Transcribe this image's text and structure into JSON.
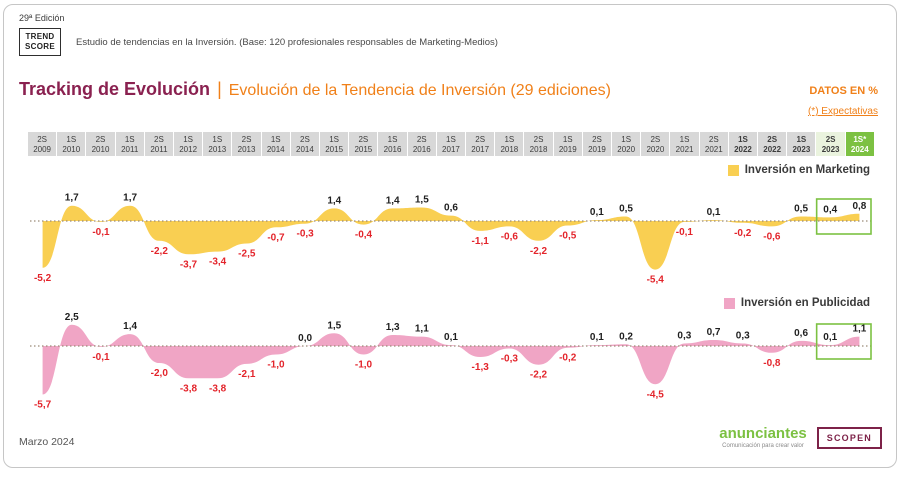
{
  "meta": {
    "edition": "29ª Edición",
    "logo_line1": "TREND",
    "logo_line2": "SCORE",
    "description": "Estudio de tendencias en la Inversión. (Base: 120 profesionales responsables de Marketing-Medios)",
    "datos": "DATOS EN %",
    "expectativas": "(*) Expectativas",
    "footer_date": "Marzo 2024"
  },
  "title": {
    "main": "Tracking de Evolución",
    "separator": "|",
    "sub": "Evolución de la Tendencia de Inversión (29 ediciones)"
  },
  "logos": {
    "anunciantes": "anunciantes",
    "anunciantes_tagline": "Comunicación para crear valor",
    "scopen": "SCOPEN"
  },
  "colors": {
    "title_purple": "#8a2150",
    "accent_orange": "#f08019",
    "marketing_fill": "#f9cf52",
    "publicidad_fill": "#f0a5c5",
    "negative_label": "#e3242b",
    "positive_label": "#1f1f1f",
    "header_bg": "#d8d8d8",
    "header_green_light": "#eaf3de",
    "green": "#7cc142",
    "baseline": "#9b8b78",
    "scopen_purple": "#7d2248"
  },
  "columns": [
    {
      "half": "2S",
      "year": "2009",
      "variant": ""
    },
    {
      "half": "1S",
      "year": "2010",
      "variant": ""
    },
    {
      "half": "2S",
      "year": "2010",
      "variant": ""
    },
    {
      "half": "1S",
      "year": "2011",
      "variant": ""
    },
    {
      "half": "2S",
      "year": "2011",
      "variant": ""
    },
    {
      "half": "1S",
      "year": "2012",
      "variant": ""
    },
    {
      "half": "1S",
      "year": "2013",
      "variant": ""
    },
    {
      "half": "2S",
      "year": "2013",
      "variant": ""
    },
    {
      "half": "1S",
      "year": "2014",
      "variant": ""
    },
    {
      "half": "2S",
      "year": "2014",
      "variant": ""
    },
    {
      "half": "1S",
      "year": "2015",
      "variant": ""
    },
    {
      "half": "2S",
      "year": "2015",
      "variant": ""
    },
    {
      "half": "1S",
      "year": "2016",
      "variant": ""
    },
    {
      "half": "2S",
      "year": "2016",
      "variant": ""
    },
    {
      "half": "1S",
      "year": "2017",
      "variant": ""
    },
    {
      "half": "2S",
      "year": "2017",
      "variant": ""
    },
    {
      "half": "1S",
      "year": "2018",
      "variant": ""
    },
    {
      "half": "2S",
      "year": "2018",
      "variant": ""
    },
    {
      "half": "1S",
      "year": "2019",
      "variant": ""
    },
    {
      "half": "2S",
      "year": "2019",
      "variant": ""
    },
    {
      "half": "1S",
      "year": "2020",
      "variant": ""
    },
    {
      "half": "2S",
      "year": "2020",
      "variant": ""
    },
    {
      "half": "1S",
      "year": "2021",
      "variant": ""
    },
    {
      "half": "2S",
      "year": "2021",
      "variant": ""
    },
    {
      "half": "1S",
      "year": "2022",
      "variant": "bold"
    },
    {
      "half": "2S",
      "year": "2022",
      "variant": "bold"
    },
    {
      "half": "1S",
      "year": "2023",
      "variant": "bold"
    },
    {
      "half": "2S",
      "year": "2023",
      "variant": "lightgreen"
    },
    {
      "half": "1S*",
      "year": "2024",
      "variant": "green"
    }
  ],
  "chart_data": [
    {
      "type": "area",
      "name": "marketing",
      "legend": "Inversión en Marketing",
      "fill": "#f9cf52",
      "baseline": 0,
      "ylim": [
        -6,
        3
      ],
      "categories": [
        "2S 2009",
        "1S 2010",
        "2S 2010",
        "1S 2011",
        "2S 2011",
        "1S 2012",
        "1S 2013",
        "2S 2013",
        "1S 2014",
        "2S 2014",
        "1S 2015",
        "2S 2015",
        "1S 2016",
        "2S 2016",
        "1S 2017",
        "2S 2017",
        "1S 2018",
        "2S 2018",
        "1S 2019",
        "2S 2019",
        "1S 2020",
        "2S 2020",
        "1S 2021",
        "2S 2021",
        "1S 2022",
        "2S 2022",
        "1S 2023",
        "2S 2023",
        "1S* 2024"
      ],
      "values": [
        -5.2,
        1.7,
        -0.1,
        1.7,
        -2.2,
        -3.7,
        -3.4,
        -2.5,
        -0.7,
        -0.3,
        1.4,
        -0.4,
        1.4,
        1.5,
        0.6,
        -1.1,
        -0.6,
        -2.2,
        -0.5,
        0.1,
        0.5,
        -5.4,
        -0.1,
        0.1,
        -0.2,
        -0.6,
        0.5,
        0.4,
        0.8
      ],
      "labels": [
        "-5,2",
        "1,7",
        "-0,1",
        "1,7",
        "-2,2",
        "-3,7",
        "-3,4",
        "-2,5",
        "-0,7",
        "-0,3",
        "1,4",
        "-0,4",
        "1,4",
        "1,5",
        "0,6",
        "-1,1",
        "-0,6",
        "-2,2",
        "-0,5",
        "0,1",
        "0,5",
        "-5,4",
        "-0,1",
        "0,1",
        "-0,2",
        "-0,6",
        "0,5",
        "0,4",
        "0,8"
      ],
      "highlight_last_n": 2
    },
    {
      "type": "area",
      "name": "publicidad",
      "legend": "Inversión en Publicidad",
      "fill": "#f0a5c5",
      "baseline": 0,
      "ylim": [
        -6,
        3
      ],
      "categories": [
        "2S 2009",
        "1S 2010",
        "2S 2010",
        "1S 2011",
        "2S 2011",
        "1S 2012",
        "1S 2013",
        "2S 2013",
        "1S 2014",
        "2S 2014",
        "1S 2015",
        "2S 2015",
        "1S 2016",
        "2S 2016",
        "1S 2017",
        "2S 2017",
        "1S 2018",
        "2S 2018",
        "1S 2019",
        "2S 2019",
        "1S 2020",
        "2S 2020",
        "1S 2021",
        "2S 2021",
        "1S 2022",
        "2S 2022",
        "1S 2023",
        "2S 2023",
        "1S* 2024"
      ],
      "values": [
        -5.7,
        2.5,
        -0.1,
        1.4,
        -2.0,
        -3.8,
        -3.8,
        -2.1,
        -1.0,
        0.0,
        1.5,
        -1.0,
        1.3,
        1.1,
        0.1,
        -1.3,
        -0.3,
        -2.2,
        -0.2,
        0.1,
        0.2,
        -4.5,
        0.3,
        0.7,
        0.3,
        -0.8,
        0.6,
        0.1,
        1.1
      ],
      "labels": [
        "-5,7",
        "2,5",
        "-0,1",
        "1,4",
        "-2,0",
        "-3,8",
        "-3,8",
        "-2,1",
        "-1,0",
        "0,0",
        "1,5",
        "-1,0",
        "1,3",
        "1,1",
        "0,1",
        "-1,3",
        "-0,3",
        "-2,2",
        "-0,2",
        "0,1",
        "0,2",
        "-4,5",
        "0,3",
        "0,7",
        "0,3",
        "-0,8",
        "0,6",
        "0,1",
        "1,1"
      ],
      "highlight_last_n": 2
    }
  ]
}
